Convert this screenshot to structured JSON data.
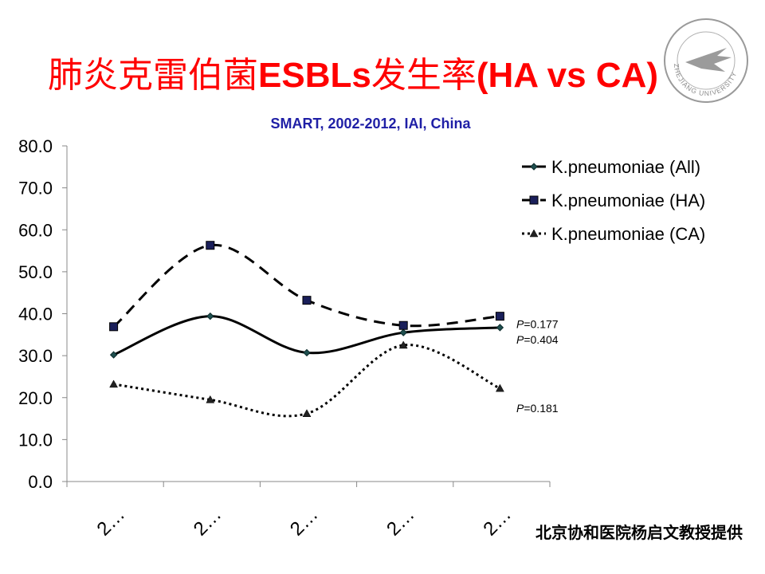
{
  "slide": {
    "title_cjk_1": "肺炎克雷伯菌",
    "title_latin_1": "ESBLs",
    "title_cjk_2": "发生率",
    "title_latin_2": "(HA vs CA)",
    "credit": "北京协和医院杨启文教授提供"
  },
  "logo": {
    "text": "ZHEJIANG UNIVERSITY",
    "color": "#777777"
  },
  "chart_data": {
    "type": "line",
    "subtitle": "SMART, 2002-2012, IAI, China",
    "categories": [
      "2…",
      "2…",
      "2…",
      "2…",
      "2…"
    ],
    "ylim": [
      0,
      80
    ],
    "yticks": [
      "0.0",
      "10.0",
      "20.0",
      "30.0",
      "40.0",
      "50.0",
      "60.0",
      "70.0",
      "80.0"
    ],
    "grid": false,
    "legend_position": "top-right",
    "series": [
      {
        "name": "K.pneumoniae (All)",
        "values": [
          30.2,
          39.4,
          30.7,
          35.5,
          36.7
        ],
        "marker": "diamond",
        "dash": "solid",
        "color": "#000000"
      },
      {
        "name": "K.pneumoniae (HA)",
        "values": [
          36.9,
          56.3,
          43.2,
          37.2,
          39.4
        ],
        "marker": "square",
        "dash": "dashed",
        "color": "#000000"
      },
      {
        "name": "K.pneumoniae (CA)",
        "values": [
          23.2,
          19.5,
          16.2,
          32.5,
          22.2
        ],
        "marker": "triangle",
        "dash": "dotted",
        "color": "#000000"
      }
    ],
    "annotations": [
      {
        "label": "P",
        "value": "=0.177",
        "y": 37.5
      },
      {
        "label": "P",
        "value": "=0.404",
        "y": 33.8
      },
      {
        "label": "P",
        "value": "=0.181",
        "y": 17.5
      }
    ]
  }
}
